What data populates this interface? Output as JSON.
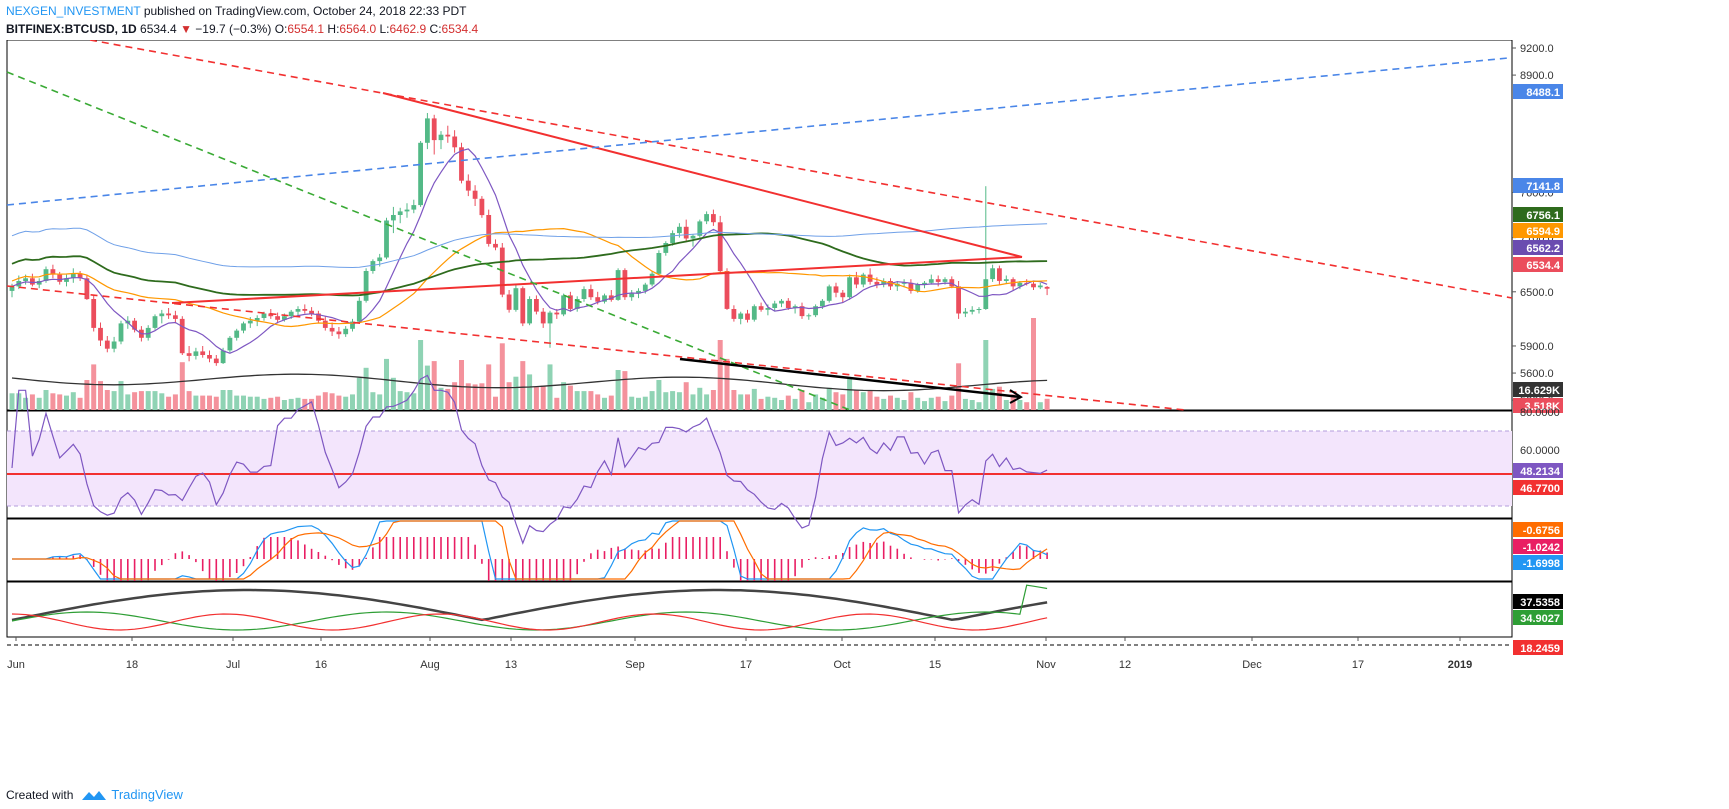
{
  "header": {
    "author": "NEXGEN_INVESTMENT",
    "published_text": "published on TradingView.com, October 24, 2018 22:33 PDT",
    "symbol": "BITFINEX:BTCUSD, 1D",
    "last": "6534.4",
    "change": "−19.7 (−0.3%)",
    "o_label": "O:",
    "o": "6554.1",
    "h_label": "H:",
    "h": "6564.0",
    "l_label": "L:",
    "l": "6462.9",
    "c_label": "C:",
    "c": "6534.4"
  },
  "footer": {
    "created_with": "Created with",
    "brand": "TradingView"
  },
  "colors": {
    "up": "#53b987",
    "down": "#eb4d5c",
    "red_line": "#f23030",
    "blue_line": "#4a86e8",
    "green_line": "#3aaa35"
  },
  "chart_data": {
    "type": "candlestick",
    "x_tick_labels": [
      "Jun",
      "18",
      "Jul",
      "16",
      "Aug",
      "13",
      "Sep",
      "17",
      "Oct",
      "15",
      "Nov",
      "12",
      "Dec",
      "17",
      "2019"
    ],
    "price_axis": {
      "ticks": [
        9200.0,
        8900.0,
        7600.0,
        7100.0,
        6500.0,
        5900.0,
        5600.0,
        5300.0,
        5000.0
      ],
      "tick_labels": [
        "9200.0",
        "8900.0",
        "7600.0",
        "7100.0",
        "6500.0",
        "5900.0",
        "5600.0",
        "5300.0",
        "5000.0"
      ],
      "badges": [
        {
          "label": "8488.1",
          "color": "#4a86e8"
        },
        {
          "label": "7141.8",
          "color": "#4a86e8"
        },
        {
          "label": "6756.1",
          "color": "#2e6b1d"
        },
        {
          "label": "6594.9",
          "color": "#ff9800"
        },
        {
          "label": "6562.2",
          "color": "#6a4cb0"
        },
        {
          "label": "6534.4",
          "color": "#eb4d5c"
        }
      ]
    },
    "volume": {
      "badges": [
        {
          "label": "16.629K",
          "color": "#333333"
        },
        {
          "label": "3.518K",
          "color": "#eb4d5c"
        }
      ]
    },
    "ohlc": [
      [
        6510,
        6590,
        6440,
        6560
      ],
      [
        6560,
        6680,
        6530,
        6620
      ],
      [
        6620,
        6690,
        6580,
        6650
      ],
      [
        6650,
        6700,
        6560,
        6580
      ],
      [
        6580,
        6650,
        6540,
        6620
      ],
      [
        6620,
        6780,
        6600,
        6750
      ],
      [
        6750,
        6800,
        6650,
        6690
      ],
      [
        6690,
        6720,
        6580,
        6610
      ],
      [
        6610,
        6690,
        6560,
        6650
      ],
      [
        6650,
        6760,
        6600,
        6700
      ],
      [
        6700,
        6730,
        6620,
        6650
      ],
      [
        6650,
        6680,
        6410,
        6420
      ],
      [
        6420,
        6470,
        6060,
        6100
      ],
      [
        6100,
        6160,
        5900,
        5960
      ],
      [
        5960,
        6010,
        5830,
        5870
      ],
      [
        5870,
        6000,
        5830,
        5950
      ],
      [
        5950,
        6180,
        5920,
        6150
      ],
      [
        6150,
        6230,
        6090,
        6180
      ],
      [
        6180,
        6210,
        6050,
        6080
      ],
      [
        6080,
        6120,
        5950,
        5990
      ],
      [
        5990,
        6130,
        5960,
        6100
      ],
      [
        6100,
        6250,
        6080,
        6230
      ],
      [
        6230,
        6300,
        6150,
        6260
      ],
      [
        6260,
        6320,
        6200,
        6240
      ],
      [
        6240,
        6290,
        6150,
        6200
      ],
      [
        6200,
        6230,
        5800,
        5820
      ],
      [
        5820,
        5900,
        5730,
        5790
      ],
      [
        5790,
        5880,
        5750,
        5840
      ],
      [
        5840,
        5900,
        5770,
        5800
      ],
      [
        5800,
        5850,
        5720,
        5760
      ],
      [
        5760,
        5800,
        5680,
        5710
      ],
      [
        5710,
        5880,
        5700,
        5850
      ],
      [
        5850,
        6010,
        5830,
        5990
      ],
      [
        5990,
        6090,
        5960,
        6070
      ],
      [
        6070,
        6170,
        6040,
        6150
      ],
      [
        6150,
        6220,
        6100,
        6180
      ],
      [
        6180,
        6240,
        6120,
        6210
      ],
      [
        6210,
        6280,
        6180,
        6260
      ],
      [
        6260,
        6310,
        6200,
        6230
      ],
      [
        6230,
        6270,
        6150,
        6190
      ],
      [
        6190,
        6260,
        6170,
        6230
      ],
      [
        6230,
        6300,
        6200,
        6280
      ],
      [
        6280,
        6340,
        6230,
        6310
      ],
      [
        6310,
        6360,
        6260,
        6290
      ],
      [
        6290,
        6330,
        6230,
        6260
      ],
      [
        6260,
        6290,
        6160,
        6180
      ],
      [
        6180,
        6230,
        6070,
        6100
      ],
      [
        6100,
        6160,
        6010,
        6060
      ],
      [
        6060,
        6110,
        5980,
        6030
      ],
      [
        6030,
        6120,
        6000,
        6090
      ],
      [
        6090,
        6200,
        6060,
        6170
      ],
      [
        6170,
        6440,
        6150,
        6400
      ],
      [
        6400,
        6760,
        6380,
        6730
      ],
      [
        6730,
        6860,
        6700,
        6840
      ],
      [
        6840,
        6920,
        6780,
        6880
      ],
      [
        6880,
        7320,
        6860,
        7290
      ],
      [
        7290,
        7440,
        7150,
        7350
      ],
      [
        7350,
        7430,
        7260,
        7390
      ],
      [
        7390,
        7480,
        7320,
        7410
      ],
      [
        7410,
        7520,
        7370,
        7460
      ],
      [
        7460,
        8170,
        7440,
        8150
      ],
      [
        8150,
        8480,
        8080,
        8420
      ],
      [
        8420,
        8460,
        8020,
        8180
      ],
      [
        8180,
        8280,
        8080,
        8240
      ],
      [
        8240,
        8340,
        8150,
        8220
      ],
      [
        8220,
        8290,
        8040,
        8100
      ],
      [
        8100,
        8150,
        7700,
        7730
      ],
      [
        7730,
        7800,
        7560,
        7620
      ],
      [
        7620,
        7680,
        7450,
        7530
      ],
      [
        7530,
        7560,
        7320,
        7350
      ],
      [
        7350,
        7410,
        7000,
        7030
      ],
      [
        7030,
        7080,
        6960,
        6990
      ],
      [
        6990,
        7040,
        6440,
        6470
      ],
      [
        6470,
        6520,
        6270,
        6300
      ],
      [
        6300,
        6580,
        6280,
        6540
      ],
      [
        6540,
        6560,
        6120,
        6150
      ],
      [
        6150,
        6450,
        6130,
        6420
      ],
      [
        6420,
        6460,
        6250,
        6280
      ],
      [
        6280,
        6320,
        6100,
        6150
      ],
      [
        6150,
        6290,
        5880,
        6270
      ],
      [
        6270,
        6310,
        6200,
        6250
      ],
      [
        6250,
        6480,
        6230,
        6460
      ],
      [
        6460,
        6500,
        6280,
        6310
      ],
      [
        6310,
        6450,
        6280,
        6420
      ],
      [
        6420,
        6560,
        6390,
        6530
      ],
      [
        6530,
        6580,
        6410,
        6440
      ],
      [
        6440,
        6500,
        6360,
        6390
      ],
      [
        6390,
        6480,
        6370,
        6460
      ],
      [
        6460,
        6520,
        6390,
        6410
      ],
      [
        6410,
        6760,
        6400,
        6740
      ],
      [
        6740,
        6760,
        6410,
        6440
      ],
      [
        6440,
        6520,
        6400,
        6480
      ],
      [
        6480,
        6540,
        6430,
        6510
      ],
      [
        6510,
        6600,
        6480,
        6580
      ],
      [
        6580,
        6730,
        6560,
        6700
      ],
      [
        6700,
        6960,
        6690,
        6930
      ],
      [
        6930,
        7060,
        6900,
        7040
      ],
      [
        7040,
        7180,
        7010,
        7150
      ],
      [
        7150,
        7260,
        7100,
        7220
      ],
      [
        7220,
        7300,
        7050,
        7090
      ],
      [
        7090,
        7140,
        7000,
        7120
      ],
      [
        7120,
        7300,
        7100,
        7280
      ],
      [
        7280,
        7390,
        7250,
        7360
      ],
      [
        7360,
        7410,
        7230,
        7270
      ],
      [
        7270,
        7340,
        6710,
        6730
      ],
      [
        6730,
        6760,
        6300,
        6310
      ],
      [
        6310,
        6350,
        6170,
        6200
      ],
      [
        6200,
        6280,
        6140,
        6260
      ],
      [
        6260,
        6300,
        6160,
        6190
      ],
      [
        6190,
        6360,
        6170,
        6340
      ],
      [
        6340,
        6380,
        6280,
        6300
      ],
      [
        6300,
        6360,
        6240,
        6320
      ],
      [
        6320,
        6400,
        6290,
        6370
      ],
      [
        6370,
        6420,
        6330,
        6400
      ],
      [
        6400,
        6430,
        6300,
        6320
      ],
      [
        6320,
        6360,
        6260,
        6340
      ],
      [
        6340,
        6380,
        6200,
        6230
      ],
      [
        6230,
        6260,
        6190,
        6240
      ],
      [
        6240,
        6360,
        6220,
        6340
      ],
      [
        6340,
        6420,
        6310,
        6400
      ],
      [
        6400,
        6580,
        6380,
        6560
      ],
      [
        6560,
        6600,
        6440,
        6490
      ],
      [
        6490,
        6520,
        6380,
        6440
      ],
      [
        6440,
        6690,
        6410,
        6660
      ],
      [
        6660,
        6720,
        6540,
        6580
      ],
      [
        6580,
        6710,
        6550,
        6690
      ],
      [
        6690,
        6760,
        6580,
        6610
      ],
      [
        6610,
        6660,
        6540,
        6580
      ],
      [
        6580,
        6650,
        6550,
        6620
      ],
      [
        6620,
        6650,
        6520,
        6560
      ],
      [
        6560,
        6620,
        6510,
        6590
      ],
      [
        6590,
        6640,
        6550,
        6600
      ],
      [
        6600,
        6640,
        6480,
        6510
      ],
      [
        6510,
        6600,
        6490,
        6580
      ],
      [
        6580,
        6620,
        6540,
        6600
      ],
      [
        6600,
        6690,
        6580,
        6640
      ],
      [
        6640,
        6680,
        6560,
        6610
      ],
      [
        6610,
        6660,
        6580,
        6640
      ],
      [
        6640,
        6670,
        6540,
        6560
      ],
      [
        6560,
        6620,
        6200,
        6260
      ],
      [
        6260,
        6320,
        6220,
        6280
      ],
      [
        6280,
        6340,
        6250,
        6300
      ],
      [
        6300,
        6330,
        6260,
        6310
      ],
      [
        6310,
        7670,
        6300,
        6640
      ],
      [
        6640,
        6800,
        6610,
        6760
      ],
      [
        6760,
        6790,
        6580,
        6620
      ],
      [
        6620,
        6680,
        6590,
        6640
      ],
      [
        6640,
        6660,
        6520,
        6560
      ],
      [
        6560,
        6620,
        6530,
        6600
      ],
      [
        6600,
        6640,
        6570,
        6590
      ],
      [
        6590,
        6610,
        6520,
        6550
      ],
      [
        6550,
        6600,
        6530,
        6570
      ],
      [
        6554.1,
        6564,
        6462.9,
        6534.4
      ]
    ],
    "trend_lines": [
      {
        "name": "descending-resistance",
        "style": "solid",
        "color": "#f23030"
      },
      {
        "name": "ascending-support",
        "style": "solid",
        "color": "#f23030"
      },
      {
        "name": "upper-channel",
        "style": "dashed",
        "color": "#f23030"
      },
      {
        "name": "lower-channel",
        "style": "dashed",
        "color": "#f23030"
      },
      {
        "name": "blue-rising",
        "style": "dashed",
        "color": "#4a86e8"
      },
      {
        "name": "green-falling",
        "style": "dashed",
        "color": "#3aaa35"
      }
    ],
    "rsi": {
      "tick_labels": [
        "80.0000",
        "60.0000"
      ],
      "badges": [
        {
          "label": "48.2134",
          "color": "#7e57c2"
        },
        {
          "label": "46.7700",
          "color": "#f23030"
        }
      ]
    },
    "macd": {
      "badges": [
        {
          "label": "-0.6756",
          "color": "#ff6d00"
        },
        {
          "label": "-1.0242",
          "color": "#e91e63"
        },
        {
          "label": "-1.6998",
          "color": "#2196f3"
        }
      ]
    },
    "dmi": {
      "badges": [
        {
          "label": "37.5358",
          "color": "#000000"
        },
        {
          "label": "34.9027",
          "color": "#2e9e35"
        },
        {
          "label": "18.2459",
          "color": "#f23030"
        }
      ]
    }
  }
}
